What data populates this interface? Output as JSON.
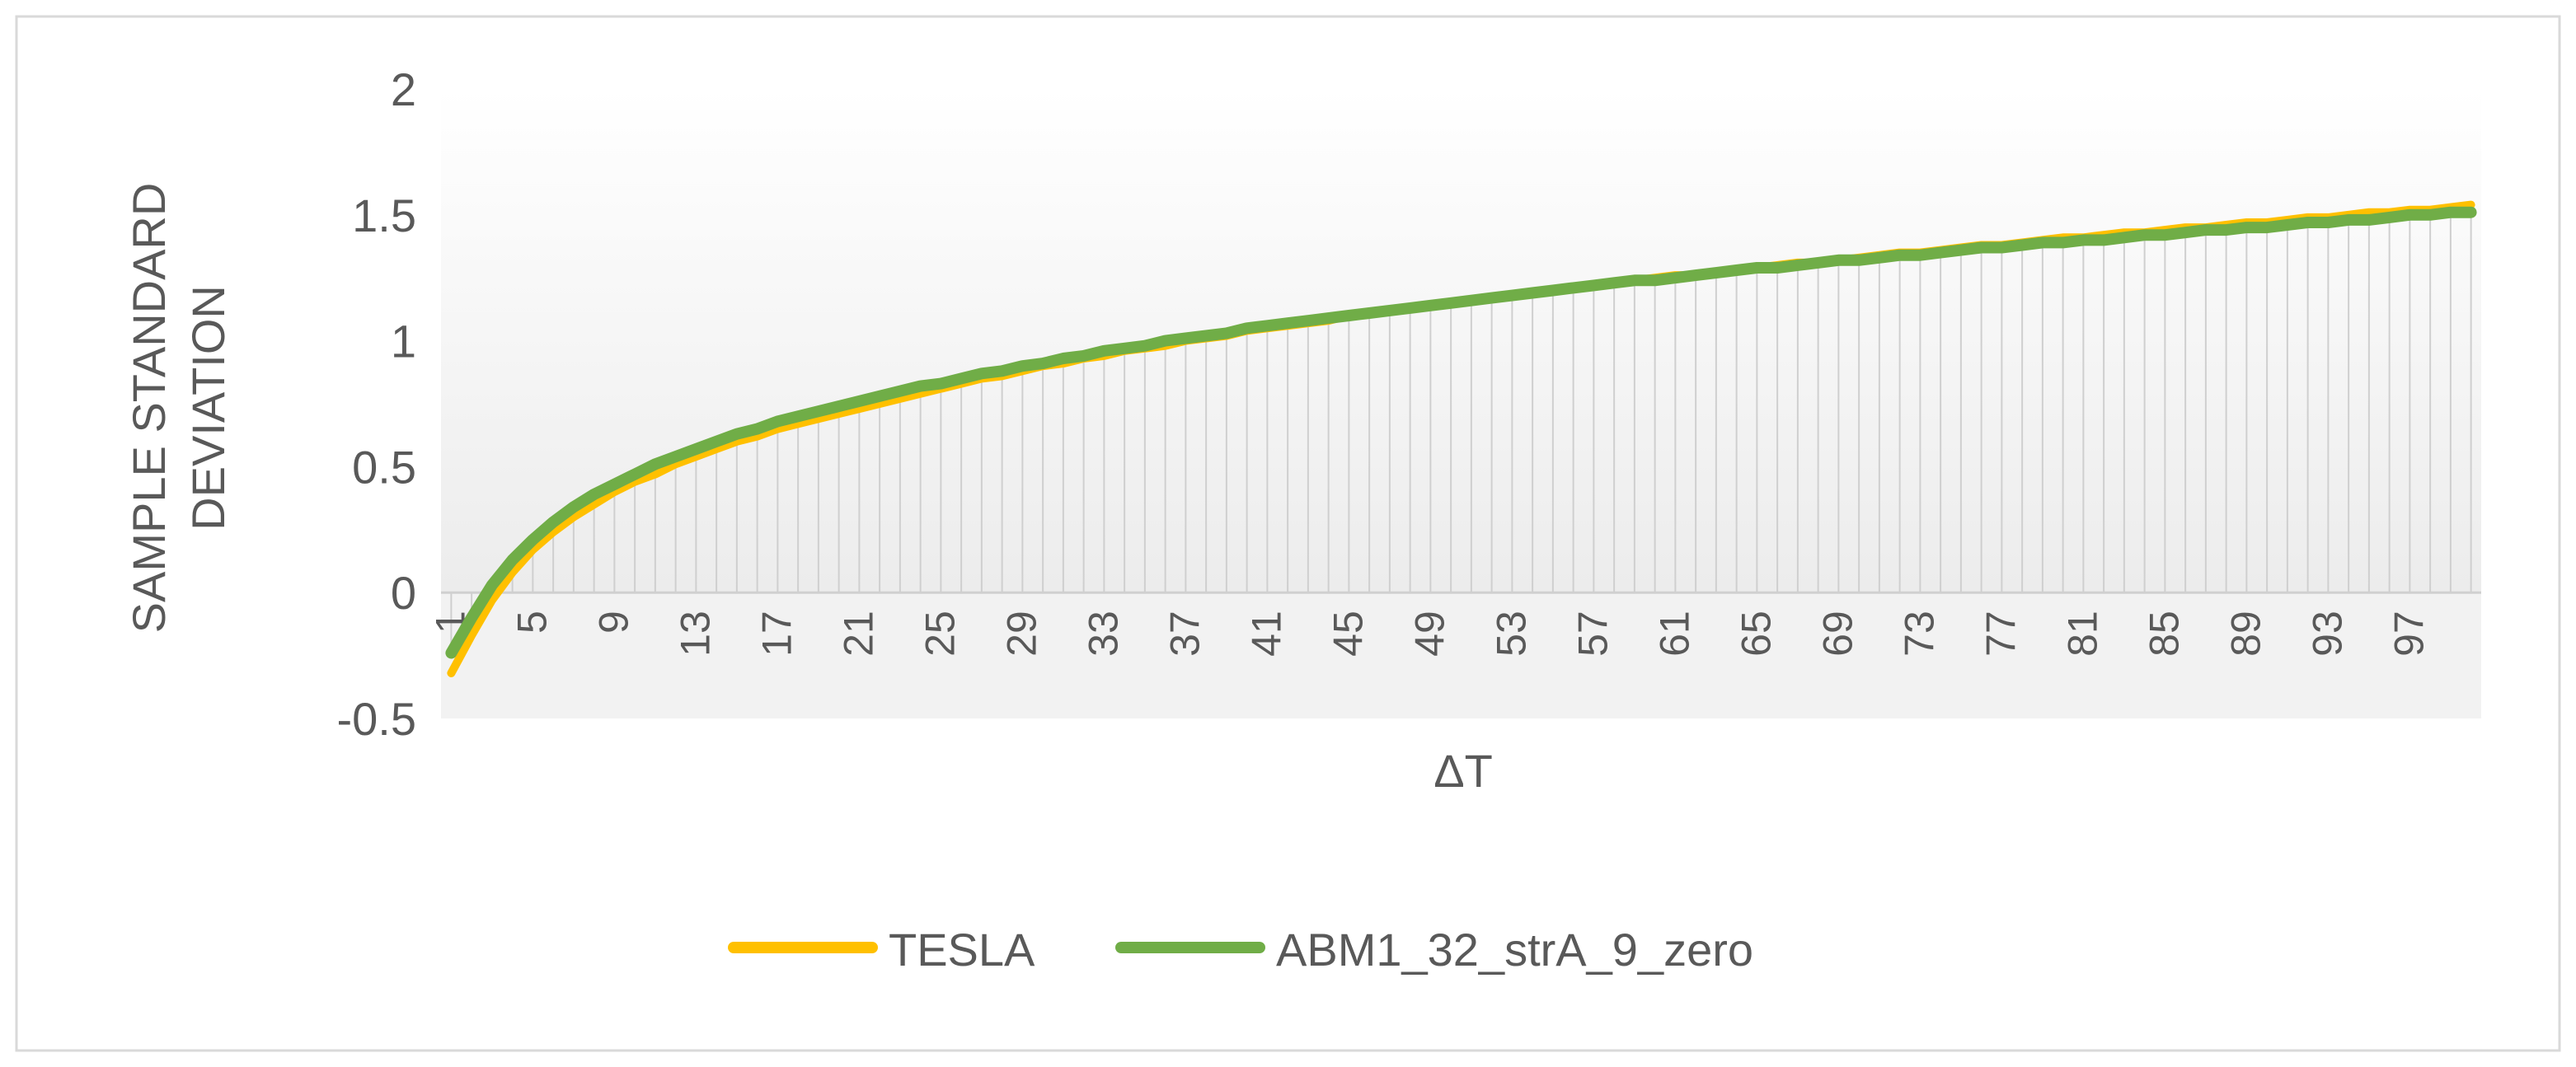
{
  "chart_data": {
    "type": "line",
    "title": "",
    "xlabel": "ΔT",
    "ylabel": "SAMPLE STANDARD DEVIATION",
    "ylabel_lines": [
      "SAMPLE STANDARD",
      "DEVIATION"
    ],
    "x_start": 1,
    "x_end": 100,
    "x_tick_labels": [
      "1",
      "5",
      "9",
      "13",
      "17",
      "21",
      "25",
      "29",
      "33",
      "37",
      "41",
      "45",
      "49",
      "53",
      "57",
      "61",
      "65",
      "69",
      "73",
      "77",
      "81",
      "85",
      "89",
      "93",
      "97"
    ],
    "y_tick_labels": [
      "2",
      "1.5",
      "1",
      "0.5",
      "0",
      "-0.5"
    ],
    "ylim": [
      -0.5,
      2
    ],
    "y_ticks": [
      2,
      1.5,
      1,
      0.5,
      0,
      -0.5
    ],
    "grid": "vertical drop lines per category",
    "legend_position": "bottom",
    "series": [
      {
        "name": "TESLA",
        "color": "#FFC000",
        "values": [
          -0.32,
          -0.17,
          -0.03,
          0.08,
          0.17,
          0.24,
          0.3,
          0.35,
          0.4,
          0.44,
          0.47,
          0.51,
          0.54,
          0.57,
          0.6,
          0.62,
          0.65,
          0.67,
          0.69,
          0.71,
          0.73,
          0.75,
          0.77,
          0.79,
          0.81,
          0.83,
          0.85,
          0.86,
          0.88,
          0.9,
          0.91,
          0.93,
          0.94,
          0.96,
          0.97,
          0.98,
          1.0,
          1.01,
          1.02,
          1.04,
          1.05,
          1.06,
          1.07,
          1.08,
          1.1,
          1.11,
          1.12,
          1.13,
          1.14,
          1.15,
          1.16,
          1.17,
          1.18,
          1.19,
          1.2,
          1.21,
          1.22,
          1.23,
          1.24,
          1.25,
          1.26,
          1.26,
          1.27,
          1.28,
          1.29,
          1.3,
          1.31,
          1.31,
          1.32,
          1.33,
          1.34,
          1.35,
          1.35,
          1.36,
          1.37,
          1.38,
          1.38,
          1.39,
          1.4,
          1.41,
          1.41,
          1.42,
          1.43,
          1.43,
          1.44,
          1.45,
          1.45,
          1.46,
          1.47,
          1.47,
          1.48,
          1.49,
          1.49,
          1.5,
          1.51,
          1.51,
          1.52,
          1.52,
          1.53,
          1.54
        ]
      },
      {
        "name": "ABM1_32_strA_9_zero",
        "color": "#70AD47",
        "values": [
          -0.24,
          -0.1,
          0.03,
          0.13,
          0.21,
          0.28,
          0.34,
          0.39,
          0.43,
          0.47,
          0.51,
          0.54,
          0.57,
          0.6,
          0.63,
          0.65,
          0.68,
          0.7,
          0.72,
          0.74,
          0.76,
          0.78,
          0.8,
          0.82,
          0.83,
          0.85,
          0.87,
          0.88,
          0.9,
          0.91,
          0.93,
          0.94,
          0.96,
          0.97,
          0.98,
          1.0,
          1.01,
          1.02,
          1.03,
          1.05,
          1.06,
          1.07,
          1.08,
          1.09,
          1.1,
          1.11,
          1.12,
          1.13,
          1.14,
          1.15,
          1.16,
          1.17,
          1.18,
          1.19,
          1.2,
          1.21,
          1.22,
          1.23,
          1.24,
          1.24,
          1.25,
          1.26,
          1.27,
          1.28,
          1.29,
          1.29,
          1.3,
          1.31,
          1.32,
          1.32,
          1.33,
          1.34,
          1.34,
          1.35,
          1.36,
          1.37,
          1.37,
          1.38,
          1.39,
          1.39,
          1.4,
          1.4,
          1.41,
          1.42,
          1.42,
          1.43,
          1.44,
          1.44,
          1.45,
          1.45,
          1.46,
          1.47,
          1.47,
          1.48,
          1.48,
          1.49,
          1.5,
          1.5,
          1.51,
          1.51
        ]
      }
    ]
  }
}
